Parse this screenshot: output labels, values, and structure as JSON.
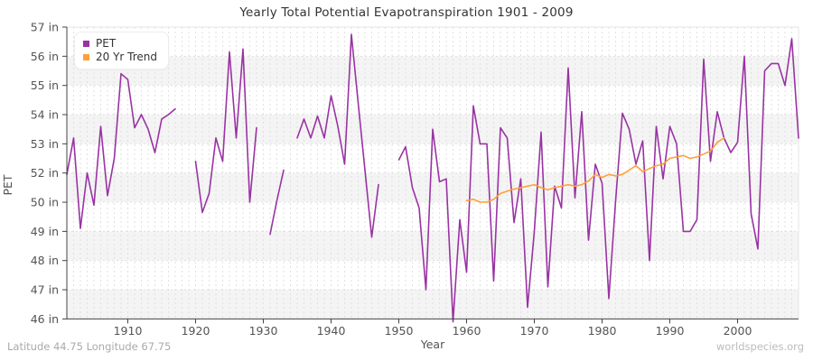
{
  "title": "Yearly Total Potential Evapotranspiration 1901 - 2009",
  "xlabel": "Year",
  "ylabel": "PET",
  "footer": {
    "left": "Latitude 44.75 Longitude 67.75",
    "right": "worldspecies.org"
  },
  "legend": {
    "items": [
      {
        "label": "PET",
        "color": "#9933A3"
      },
      {
        "label": "20 Yr Trend",
        "color": "#FFA036"
      }
    ]
  },
  "chart_data": {
    "type": "line",
    "title": "Yearly Total Potential Evapotranspiration 1901 - 2009",
    "xlabel": "Year",
    "ylabel": "PET",
    "x_range": [
      1901,
      2009
    ],
    "xticks": [
      1910,
      1920,
      1930,
      1940,
      1950,
      1960,
      1970,
      1980,
      1990,
      2000
    ],
    "ytick_labels": [
      "57 in",
      "56 in",
      "55 in",
      "54 in",
      "53 in",
      "52 in",
      "50 in",
      "49 in",
      "48 in",
      "47 in",
      "46 in"
    ],
    "y_axis_note": "11 evenly spaced ticks; label 51 omitted so the 50-52 span occupies a single interval",
    "grid": true,
    "legend_position": "top-left",
    "series": [
      {
        "name": "PET",
        "color": "#9933A3",
        "start_year": 1901,
        "values": [
          51.9,
          53.2,
          49.1,
          52.0,
          49.9,
          53.6,
          50.45,
          52.5,
          55.4,
          55.2,
          53.55,
          54.0,
          53.5,
          52.7,
          53.85,
          54.0,
          54.2,
          null,
          null,
          52.4,
          49.65,
          50.6,
          53.2,
          52.4,
          56.15,
          53.2,
          56.25,
          50.0,
          53.55,
          null,
          48.9,
          50.1,
          52.1,
          null,
          53.2,
          53.85,
          53.2,
          53.95,
          53.2,
          54.65,
          53.6,
          52.3,
          56.75,
          54.4,
          52.1,
          48.8,
          51.2,
          null,
          null,
          52.45,
          52.9,
          51.0,
          49.8,
          47.0,
          53.5,
          51.4,
          51.6,
          45.9,
          49.4,
          47.6,
          54.3,
          53.0,
          53.0,
          47.3,
          53.55,
          53.2,
          49.3,
          51.6,
          46.4,
          49.0,
          53.4,
          47.1,
          51.1,
          49.8,
          55.6,
          50.3,
          54.1,
          48.7,
          52.3,
          51.3,
          46.7,
          50.1,
          54.05,
          53.5,
          52.3,
          53.1,
          48.0,
          53.6,
          51.6,
          53.6,
          53.0,
          49.0,
          49.0,
          49.4,
          55.9,
          52.4,
          54.1,
          53.2,
          52.7,
          53.05,
          56.0,
          49.6,
          48.4,
          55.5,
          55.75,
          55.75,
          55.0,
          56.6,
          53.2
        ]
      },
      {
        "name": "20 Yr Trend",
        "color": "#FFA036",
        "start_year": 1960,
        "values": [
          50.1,
          50.2,
          50.0,
          50.0,
          50.2,
          50.6,
          50.75,
          50.9,
          51.0,
          51.1,
          51.2,
          51.0,
          50.85,
          51.0,
          51.1,
          51.2,
          51.1,
          51.2,
          51.45,
          51.9,
          51.7,
          51.9,
          51.8,
          51.9,
          52.1,
          52.25,
          52.05,
          52.15,
          52.25,
          52.3,
          52.5,
          52.55,
          52.6,
          52.5,
          52.55,
          52.65,
          52.75,
          53.05,
          53.2
        ]
      }
    ]
  }
}
